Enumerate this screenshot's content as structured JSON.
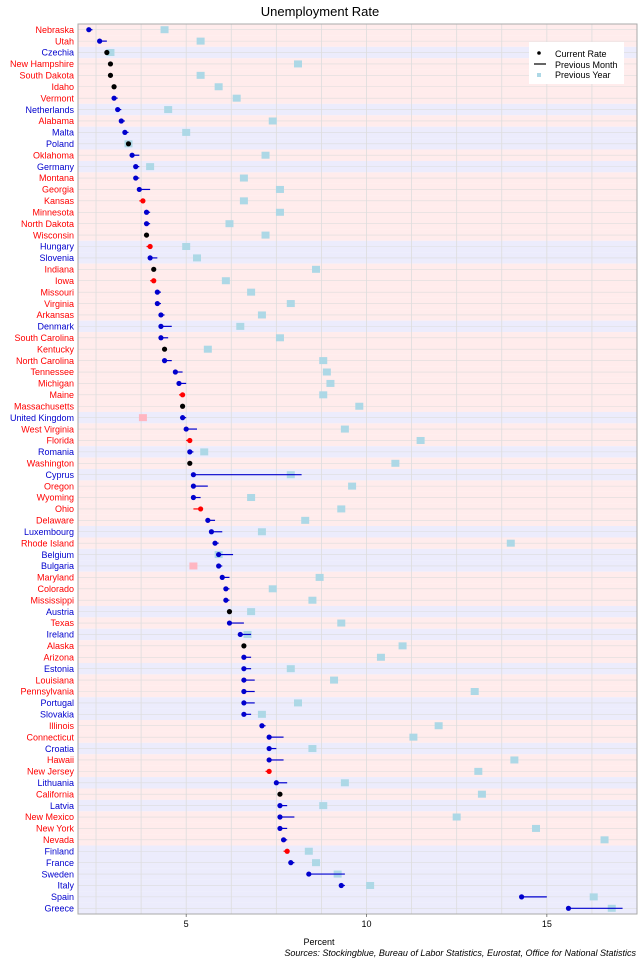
{
  "chart_data": {
    "type": "scatter",
    "title": "Unemployment Rate",
    "xlabel": "Percent",
    "source": "Sources: Stockingblue, Bureau of Labor Statistics, Eurostat, Office for National Statistics",
    "xlim": [
      2.0,
      17.5
    ],
    "xticks": [
      5,
      10,
      15
    ],
    "grid": true,
    "legend_position": "top-right",
    "legend": {
      "current": "Current Rate",
      "previous_month": "Previous Month",
      "previous_year": "Previous Year"
    },
    "colors": {
      "us_state_label": "#ff0000",
      "europe_label": "#0000cd",
      "us_row_band": "#ffecec",
      "europe_row_band": "#ececfc",
      "grid": "#dddddd",
      "increase": "#ff0000",
      "decrease": "#0000cd",
      "unchanged": "#000000",
      "year_better": "#add8e6",
      "year_worse": "#ffb6c1"
    },
    "rows": [
      {
        "name": "Nebraska",
        "group": "US",
        "current": 2.3,
        "prev_month": 2.4,
        "prev_year": 4.4
      },
      {
        "name": "Utah",
        "group": "US",
        "current": 2.6,
        "prev_month": 2.8,
        "prev_year": 5.4
      },
      {
        "name": "Czechia",
        "group": "EU",
        "current": 2.8,
        "prev_month": 2.8,
        "prev_year": 2.9
      },
      {
        "name": "New Hampshire",
        "group": "US",
        "current": 2.9,
        "prev_month": 2.9,
        "prev_year": 8.1
      },
      {
        "name": "South Dakota",
        "group": "US",
        "current": 2.9,
        "prev_month": 2.9,
        "prev_year": 5.4
      },
      {
        "name": "Idaho",
        "group": "US",
        "current": 3.0,
        "prev_month": 3.0,
        "prev_year": 5.9
      },
      {
        "name": "Vermont",
        "group": "US",
        "current": 3.0,
        "prev_month": 3.1,
        "prev_year": 6.4
      },
      {
        "name": "Netherlands",
        "group": "EU",
        "current": 3.1,
        "prev_month": 3.2,
        "prev_year": 4.5
      },
      {
        "name": "Alabama",
        "group": "US",
        "current": 3.2,
        "prev_month": 3.3,
        "prev_year": 7.4
      },
      {
        "name": "Malta",
        "group": "EU",
        "current": 3.3,
        "prev_month": 3.4,
        "prev_year": 5.0
      },
      {
        "name": "Poland",
        "group": "EU",
        "current": 3.4,
        "prev_month": 3.4,
        "prev_year": 3.4
      },
      {
        "name": "Oklahoma",
        "group": "US",
        "current": 3.5,
        "prev_month": 3.7,
        "prev_year": 7.2
      },
      {
        "name": "Germany",
        "group": "EU",
        "current": 3.6,
        "prev_month": 3.7,
        "prev_year": 4.0
      },
      {
        "name": "Montana",
        "group": "US",
        "current": 3.6,
        "prev_month": 3.7,
        "prev_year": 6.6
      },
      {
        "name": "Georgia",
        "group": "US",
        "current": 3.7,
        "prev_month": 4.0,
        "prev_year": 7.6
      },
      {
        "name": "Kansas",
        "group": "US",
        "current": 3.8,
        "prev_month": 3.7,
        "prev_year": 6.6
      },
      {
        "name": "Minnesota",
        "group": "US",
        "current": 3.9,
        "prev_month": 4.0,
        "prev_year": 7.6
      },
      {
        "name": "North Dakota",
        "group": "US",
        "current": 3.9,
        "prev_month": 4.0,
        "prev_year": 6.2
      },
      {
        "name": "Wisconsin",
        "group": "US",
        "current": 3.9,
        "prev_month": 3.9,
        "prev_year": 7.2
      },
      {
        "name": "Hungary",
        "group": "EU",
        "current": 4.0,
        "prev_month": 3.9,
        "prev_year": 5.0
      },
      {
        "name": "Slovenia",
        "group": "EU",
        "current": 4.0,
        "prev_month": 4.2,
        "prev_year": 5.3
      },
      {
        "name": "Indiana",
        "group": "US",
        "current": 4.1,
        "prev_month": 4.1,
        "prev_year": 8.6
      },
      {
        "name": "Iowa",
        "group": "US",
        "current": 4.1,
        "prev_month": 4.0,
        "prev_year": 6.1
      },
      {
        "name": "Missouri",
        "group": "US",
        "current": 4.2,
        "prev_month": 4.3,
        "prev_year": 6.8
      },
      {
        "name": "Virginia",
        "group": "US",
        "current": 4.2,
        "prev_month": 4.3,
        "prev_year": 7.9
      },
      {
        "name": "Arkansas",
        "group": "US",
        "current": 4.3,
        "prev_month": 4.4,
        "prev_year": 7.1
      },
      {
        "name": "Denmark",
        "group": "EU",
        "current": 4.3,
        "prev_month": 4.6,
        "prev_year": 6.5
      },
      {
        "name": "South Carolina",
        "group": "US",
        "current": 4.3,
        "prev_month": 4.5,
        "prev_year": 7.6
      },
      {
        "name": "Kentucky",
        "group": "US",
        "current": 4.4,
        "prev_month": 4.4,
        "prev_year": 5.6
      },
      {
        "name": "North Carolina",
        "group": "US",
        "current": 4.4,
        "prev_month": 4.6,
        "prev_year": 8.8
      },
      {
        "name": "Tennessee",
        "group": "US",
        "current": 4.7,
        "prev_month": 4.9,
        "prev_year": 8.9
      },
      {
        "name": "Michigan",
        "group": "US",
        "current": 4.8,
        "prev_month": 5.0,
        "prev_year": 9.0
      },
      {
        "name": "Maine",
        "group": "US",
        "current": 4.9,
        "prev_month": 4.8,
        "prev_year": 8.8
      },
      {
        "name": "Massachusetts",
        "group": "US",
        "current": 4.9,
        "prev_month": 4.9,
        "prev_year": 9.8
      },
      {
        "name": "United Kingdom",
        "group": "EU",
        "current": 4.9,
        "prev_month": 5.0,
        "prev_year": 3.8
      },
      {
        "name": "West Virginia",
        "group": "US",
        "current": 5.0,
        "prev_month": 5.3,
        "prev_year": 9.4
      },
      {
        "name": "Florida",
        "group": "US",
        "current": 5.1,
        "prev_month": 5.0,
        "prev_year": 11.5
      },
      {
        "name": "Romania",
        "group": "EU",
        "current": 5.1,
        "prev_month": 5.2,
        "prev_year": 5.5
      },
      {
        "name": "Washington",
        "group": "US",
        "current": 5.1,
        "prev_month": 5.1,
        "prev_year": 10.8
      },
      {
        "name": "Cyprus",
        "group": "EU",
        "current": 5.2,
        "prev_month": 8.2,
        "prev_year": 7.9
      },
      {
        "name": "Oregon",
        "group": "US",
        "current": 5.2,
        "prev_month": 5.6,
        "prev_year": 9.6
      },
      {
        "name": "Wyoming",
        "group": "US",
        "current": 5.2,
        "prev_month": 5.4,
        "prev_year": 6.8
      },
      {
        "name": "Ohio",
        "group": "US",
        "current": 5.4,
        "prev_month": 5.2,
        "prev_year": 9.3
      },
      {
        "name": "Delaware",
        "group": "US",
        "current": 5.6,
        "prev_month": 5.8,
        "prev_year": 8.3
      },
      {
        "name": "Luxembourg",
        "group": "EU",
        "current": 5.7,
        "prev_month": 6.0,
        "prev_year": 7.1
      },
      {
        "name": "Rhode Island",
        "group": "US",
        "current": 5.8,
        "prev_month": 5.9,
        "prev_year": 14.0
      },
      {
        "name": "Belgium",
        "group": "EU",
        "current": 5.9,
        "prev_month": 6.3,
        "prev_year": 5.9
      },
      {
        "name": "Bulgaria",
        "group": "EU",
        "current": 5.9,
        "prev_month": 6.0,
        "prev_year": 5.2
      },
      {
        "name": "Maryland",
        "group": "US",
        "current": 6.0,
        "prev_month": 6.2,
        "prev_year": 8.7
      },
      {
        "name": "Colorado",
        "group": "US",
        "current": 6.1,
        "prev_month": 6.2,
        "prev_year": 7.4
      },
      {
        "name": "Mississippi",
        "group": "US",
        "current": 6.1,
        "prev_month": 6.2,
        "prev_year": 8.5
      },
      {
        "name": "Austria",
        "group": "EU",
        "current": 6.2,
        "prev_month": 6.2,
        "prev_year": 6.8
      },
      {
        "name": "Texas",
        "group": "US",
        "current": 6.2,
        "prev_month": 6.6,
        "prev_year": 9.3
      },
      {
        "name": "Ireland",
        "group": "EU",
        "current": 6.5,
        "prev_month": 6.8,
        "prev_year": 6.7
      },
      {
        "name": "Alaska",
        "group": "US",
        "current": 6.6,
        "prev_month": 6.6,
        "prev_year": 11.0
      },
      {
        "name": "Arizona",
        "group": "US",
        "current": 6.6,
        "prev_month": 6.8,
        "prev_year": 10.4
      },
      {
        "name": "Estonia",
        "group": "EU",
        "current": 6.6,
        "prev_month": 6.8,
        "prev_year": 7.9
      },
      {
        "name": "Louisiana",
        "group": "US",
        "current": 6.6,
        "prev_month": 6.9,
        "prev_year": 9.1
      },
      {
        "name": "Pennsylvania",
        "group": "US",
        "current": 6.6,
        "prev_month": 6.9,
        "prev_year": 13.0
      },
      {
        "name": "Portugal",
        "group": "EU",
        "current": 6.6,
        "prev_month": 6.9,
        "prev_year": 8.1
      },
      {
        "name": "Slovakia",
        "group": "EU",
        "current": 6.6,
        "prev_month": 6.8,
        "prev_year": 7.1
      },
      {
        "name": "Illinois",
        "group": "US",
        "current": 7.1,
        "prev_month": 7.2,
        "prev_year": 12.0
      },
      {
        "name": "Connecticut",
        "group": "US",
        "current": 7.3,
        "prev_month": 7.7,
        "prev_year": 11.3
      },
      {
        "name": "Croatia",
        "group": "EU",
        "current": 7.3,
        "prev_month": 7.5,
        "prev_year": 8.5
      },
      {
        "name": "Hawaii",
        "group": "US",
        "current": 7.3,
        "prev_month": 7.7,
        "prev_year": 14.1
      },
      {
        "name": "New Jersey",
        "group": "US",
        "current": 7.3,
        "prev_month": 7.2,
        "prev_year": 13.1
      },
      {
        "name": "Lithuania",
        "group": "EU",
        "current": 7.5,
        "prev_month": 7.8,
        "prev_year": 9.4
      },
      {
        "name": "California",
        "group": "US",
        "current": 7.6,
        "prev_month": 7.6,
        "prev_year": 13.2
      },
      {
        "name": "Latvia",
        "group": "EU",
        "current": 7.6,
        "prev_month": 7.8,
        "prev_year": 8.8
      },
      {
        "name": "New Mexico",
        "group": "US",
        "current": 7.6,
        "prev_month": 8.0,
        "prev_year": 12.5
      },
      {
        "name": "New York",
        "group": "US",
        "current": 7.6,
        "prev_month": 7.8,
        "prev_year": 14.7
      },
      {
        "name": "Nevada",
        "group": "US",
        "current": 7.7,
        "prev_month": 7.8,
        "prev_year": 16.6
      },
      {
        "name": "Finland",
        "group": "EU",
        "current": 7.8,
        "prev_month": 7.7,
        "prev_year": 8.4
      },
      {
        "name": "France",
        "group": "EU",
        "current": 7.9,
        "prev_month": 8.0,
        "prev_year": 8.6
      },
      {
        "name": "Sweden",
        "group": "EU",
        "current": 8.4,
        "prev_month": 9.4,
        "prev_year": 9.2
      },
      {
        "name": "Italy",
        "group": "EU",
        "current": 9.3,
        "prev_month": 9.4,
        "prev_year": 10.1
      },
      {
        "name": "Spain",
        "group": "EU",
        "current": 14.3,
        "prev_month": 15.0,
        "prev_year": 16.3
      },
      {
        "name": "Greece",
        "group": "EU",
        "current": 15.6,
        "prev_month": 17.1,
        "prev_year": 16.8
      }
    ]
  }
}
